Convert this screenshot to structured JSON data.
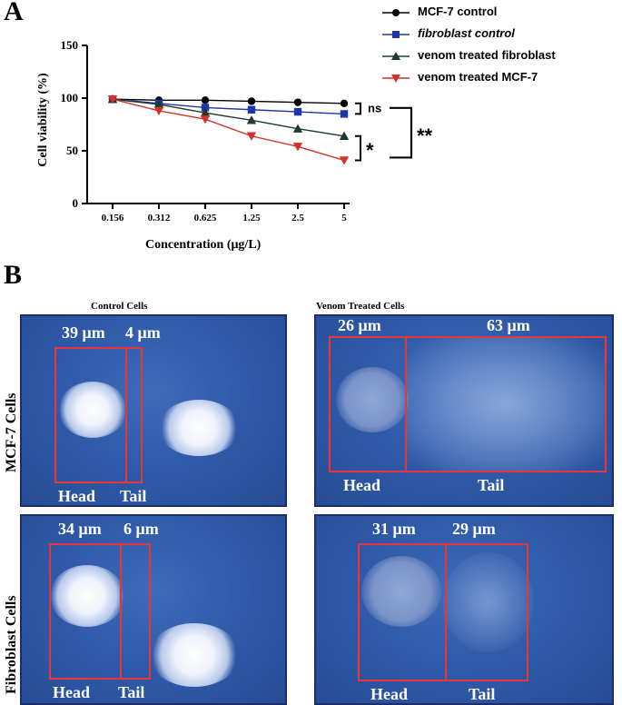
{
  "panel_a": {
    "letter": "A"
  },
  "panel_b": {
    "letter": "B"
  },
  "chart_data": {
    "type": "line",
    "x": [
      "0.156",
      "0.312",
      "0.625",
      "1.25",
      "2.5",
      "5"
    ],
    "categories": [
      "0.156",
      "0.312",
      "0.625",
      "1.25",
      "2.5",
      "5"
    ],
    "series": [
      {
        "name": "MCF-7 control",
        "values": [
          99,
          98,
          98,
          97,
          96,
          95
        ],
        "color": "#000000",
        "marker": "circle",
        "italic": false
      },
      {
        "name": "fibroblast control",
        "values": [
          99,
          95,
          91,
          89,
          87,
          85
        ],
        "color": "#1f35a8",
        "marker": "square",
        "italic": true
      },
      {
        "name": "venom treated fibroblast",
        "values": [
          99,
          94,
          86,
          79,
          71,
          64
        ],
        "color": "#1d3b2b",
        "marker": "triangle-up",
        "italic": false
      },
      {
        "name": "venom treated MCF-7",
        "values": [
          99,
          88,
          80,
          64,
          54,
          41
        ],
        "color": "#d2322a",
        "marker": "triangle-down",
        "italic": false
      }
    ],
    "title": "",
    "xlabel": "Concentration (μg/L)",
    "ylabel": "Cell viability  (%)",
    "ylim": [
      0,
      150
    ],
    "yticks": [
      "0",
      "50",
      "100",
      "150"
    ],
    "grid": false,
    "legend_position": "top-right",
    "annotations": {
      "ns": "ns",
      "single": "*",
      "double": "**"
    }
  },
  "comet_assay": {
    "columns": [
      "Control Cells",
      "Venom Treated Cells"
    ],
    "rows": [
      "MCF-7 Cells",
      "Fibroblast Cells"
    ],
    "panels": [
      {
        "id": "mcf7-control",
        "head": "39 μm",
        "tail": "4 μm",
        "head_label": "Head",
        "tail_label": "Tail"
      },
      {
        "id": "mcf7-venom",
        "head": "26 μm",
        "tail": "63 μm",
        "head_label": "Head",
        "tail_label": "Tail"
      },
      {
        "id": "fibro-control",
        "head": "34 μm",
        "tail": "6 μm",
        "head_label": "Head",
        "tail_label": "Tail"
      },
      {
        "id": "fibro-venom",
        "head": "31 μm",
        "tail": "29 μm",
        "head_label": "Head",
        "tail_label": "Tail"
      }
    ]
  }
}
